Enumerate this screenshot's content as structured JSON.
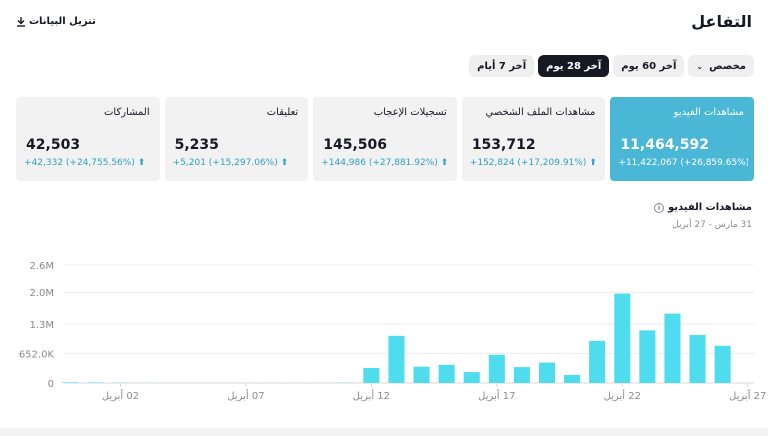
{
  "header": {
    "title": "التفاعل",
    "download_label": "تنزيل البيانات"
  },
  "ranges": [
    {
      "label": "آخر 7 أيام",
      "active": false
    },
    {
      "label": "آخر 28 يوم",
      "active": true
    },
    {
      "label": "آخر 60 يوم",
      "active": false
    },
    {
      "label": "مخصص",
      "active": false,
      "dropdown": true
    }
  ],
  "cards": [
    {
      "label": "مشاهدات الفيديو",
      "value": "11,464,592",
      "change": "+11,422,067 (+26,859.65%) ⬆",
      "active": true
    },
    {
      "label": "مشاهدات الملف الشخصي",
      "value": "153,712",
      "change": "+152,824 (+17,209.91%) ⬆",
      "active": false
    },
    {
      "label": "تسجيلات الإعجاب",
      "value": "145,506",
      "change": "+144,986 (+27,881.92%) ⬆",
      "active": false
    },
    {
      "label": "تعليقات",
      "value": "5,235",
      "change": "+5,201 (+15,297.06%) ⬆",
      "active": false
    },
    {
      "label": "المشاركات",
      "value": "42,503",
      "change": "+42,332 (+24,755.56%) ⬆",
      "active": false
    }
  ],
  "chart_section": {
    "title": "مشاهدات الفيديو",
    "date_range": "31 مارس - 27 أبريل"
  },
  "colors": {
    "accent": "#4ab7d6",
    "bar": "#4fdcef",
    "active_pill": "#161823"
  },
  "chart_data": {
    "type": "bar",
    "title": "مشاهدات الفيديو",
    "xlabel": "",
    "ylabel": "",
    "y_ticks": [
      "0",
      "652.0K",
      "1.3M",
      "2.0M",
      "2.6M"
    ],
    "y_tick_values": [
      0,
      652000,
      1300000,
      2000000,
      2600000
    ],
    "ylim": [
      0,
      2600000
    ],
    "x_ticks": [
      {
        "label": "02 أبريل",
        "day": 3
      },
      {
        "label": "07 أبريل",
        "day": 8
      },
      {
        "label": "12 أبريل",
        "day": 13
      },
      {
        "label": "17 أبريل",
        "day": 18
      },
      {
        "label": "22 أبريل",
        "day": 23
      },
      {
        "label": "27 أبريل",
        "day": 28
      }
    ],
    "days": [
      1,
      2,
      3,
      4,
      5,
      6,
      7,
      8,
      9,
      10,
      11,
      12,
      13,
      14,
      15,
      16,
      17,
      18,
      19,
      20,
      21,
      22,
      23,
      24,
      25,
      26,
      27,
      28
    ],
    "values": [
      15000,
      12000,
      5000,
      3000,
      2000,
      1500,
      1000,
      1000,
      1000,
      1000,
      2000,
      5000,
      330000,
      1040000,
      360000,
      400000,
      240000,
      620000,
      350000,
      450000,
      180000,
      930000,
      1970000,
      1160000,
      1530000,
      1060000,
      820000,
      0
    ]
  }
}
